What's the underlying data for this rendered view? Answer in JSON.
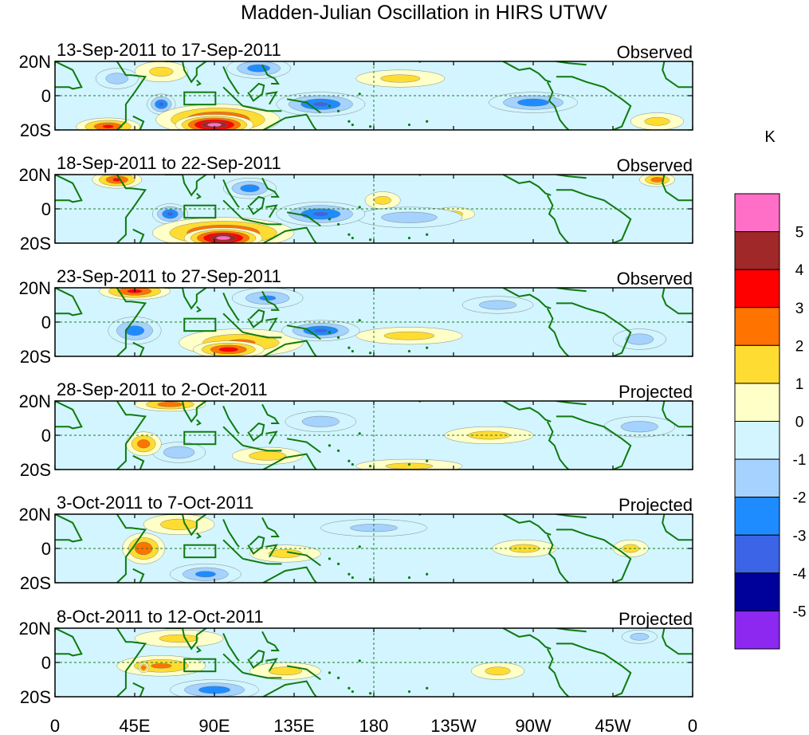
{
  "chart_data": {
    "type": "heatmap",
    "title": "Madden-Julian Oscillation in HIRS UTWV",
    "colorbar": {
      "unit": "K",
      "ticks": [
        "5",
        "4",
        "3",
        "2",
        "1",
        "0",
        "-1",
        "-2",
        "-3",
        "-4",
        "-5"
      ],
      "colors": [
        "#ff6ec7",
        "#a02828",
        "#ff0000",
        "#ff7300",
        "#ffdc32",
        "#ffffc8",
        "#d2f5ff",
        "#a5d2ff",
        "#1e8cff",
        "#3c64e6",
        "#00009b",
        "#8c28f0"
      ]
    },
    "x_ticks": [
      "0",
      "45E",
      "90E",
      "135E",
      "180",
      "135W",
      "90W",
      "45W",
      "0"
    ],
    "y_ticks": [
      "20N",
      "0",
      "20S"
    ],
    "xlim_deg_east": [
      0,
      360
    ],
    "ylim_deg": [
      -20,
      20
    ],
    "panels": [
      {
        "period": "13-Sep-2011 to 17-Sep-2011",
        "status": "Observed",
        "blobs": [
          {
            "lon": 90,
            "lat": -17,
            "rx": 22,
            "ry": 6,
            "v": 5.5
          },
          {
            "lon": 92,
            "lat": -14,
            "rx": 35,
            "ry": 9,
            "v": 3.5
          },
          {
            "lon": 30,
            "lat": -18,
            "rx": 18,
            "ry": 5,
            "v": 3
          },
          {
            "lon": 60,
            "lat": -5,
            "rx": 8,
            "ry": 6,
            "v": -3
          },
          {
            "lon": 150,
            "lat": -5,
            "rx": 25,
            "ry": 7,
            "v": -3
          },
          {
            "lon": 115,
            "lat": 16,
            "rx": 18,
            "ry": 6,
            "v": -2.5
          },
          {
            "lon": 270,
            "lat": -4,
            "rx": 25,
            "ry": 6,
            "v": -2.5
          },
          {
            "lon": 35,
            "lat": 10,
            "rx": 12,
            "ry": 6,
            "v": -1.5
          },
          {
            "lon": 195,
            "lat": 10,
            "rx": 25,
            "ry": 5,
            "v": 1.2
          },
          {
            "lon": 340,
            "lat": -15,
            "rx": 15,
            "ry": 5,
            "v": 1.3
          },
          {
            "lon": 60,
            "lat": 14,
            "rx": 15,
            "ry": 6,
            "v": 1.2
          }
        ]
      },
      {
        "period": "18-Sep-2011 to 22-Sep-2011",
        "status": "Observed",
        "blobs": [
          {
            "lon": 95,
            "lat": -17,
            "rx": 22,
            "ry": 6,
            "v": 5.5
          },
          {
            "lon": 95,
            "lat": -14,
            "rx": 40,
            "ry": 9,
            "v": 3.5
          },
          {
            "lon": 35,
            "lat": 17,
            "rx": 14,
            "ry": 5,
            "v": 3
          },
          {
            "lon": 340,
            "lat": 17,
            "rx": 10,
            "ry": 4,
            "v": 2.5
          },
          {
            "lon": 65,
            "lat": -3,
            "rx": 10,
            "ry": 6,
            "v": -3
          },
          {
            "lon": 150,
            "lat": -3,
            "rx": 25,
            "ry": 7,
            "v": -3
          },
          {
            "lon": 110,
            "lat": 12,
            "rx": 15,
            "ry": 6,
            "v": -2.5
          },
          {
            "lon": 200,
            "lat": -5,
            "rx": 30,
            "ry": 6,
            "v": -1.5
          },
          {
            "lon": 185,
            "lat": 5,
            "rx": 10,
            "ry": 5,
            "v": 1.3
          },
          {
            "lon": 225,
            "lat": -3,
            "rx": 12,
            "ry": 4,
            "v": 1.2
          }
        ]
      },
      {
        "period": "23-Sep-2011 to 27-Sep-2011",
        "status": "Observed",
        "blobs": [
          {
            "lon": 98,
            "lat": -16,
            "rx": 20,
            "ry": 5,
            "v": 3.5
          },
          {
            "lon": 105,
            "lat": -12,
            "rx": 35,
            "ry": 8,
            "v": 2
          },
          {
            "lon": 45,
            "lat": 18,
            "rx": 20,
            "ry": 5,
            "v": 3.2
          },
          {
            "lon": 45,
            "lat": -5,
            "rx": 15,
            "ry": 8,
            "v": -2.5
          },
          {
            "lon": 150,
            "lat": -5,
            "rx": 22,
            "ry": 6,
            "v": -3
          },
          {
            "lon": 120,
            "lat": 14,
            "rx": 20,
            "ry": 6,
            "v": -2
          },
          {
            "lon": 200,
            "lat": -8,
            "rx": 30,
            "ry": 5,
            "v": 1.3
          },
          {
            "lon": 250,
            "lat": 10,
            "rx": 20,
            "ry": 5,
            "v": -1.5
          },
          {
            "lon": 330,
            "lat": -10,
            "rx": 15,
            "ry": 6,
            "v": -1.5
          }
        ]
      },
      {
        "period": "28-Sep-2011 to 2-Oct-2011",
        "status": "Projected",
        "blobs": [
          {
            "lon": 50,
            "lat": -5,
            "rx": 10,
            "ry": 7,
            "v": 2.5
          },
          {
            "lon": 65,
            "lat": 18,
            "rx": 20,
            "ry": 4,
            "v": 2.5
          },
          {
            "lon": 70,
            "lat": -10,
            "rx": 15,
            "ry": 6,
            "v": -1.8
          },
          {
            "lon": 120,
            "lat": -12,
            "rx": 20,
            "ry": 5,
            "v": 1.5
          },
          {
            "lon": 150,
            "lat": 8,
            "rx": 20,
            "ry": 6,
            "v": -1.5
          },
          {
            "lon": 200,
            "lat": -18,
            "rx": 30,
            "ry": 4,
            "v": 1.2
          },
          {
            "lon": 245,
            "lat": 0,
            "rx": 25,
            "ry": 5,
            "v": 1.3
          },
          {
            "lon": 330,
            "lat": 5,
            "rx": 20,
            "ry": 6,
            "v": -1.5
          }
        ]
      },
      {
        "period": "3-Oct-2011 to 7-Oct-2011",
        "status": "Projected",
        "blobs": [
          {
            "lon": 50,
            "lat": 0,
            "rx": 12,
            "ry": 9,
            "v": 2.8
          },
          {
            "lon": 70,
            "lat": 14,
            "rx": 20,
            "ry": 6,
            "v": 1.5
          },
          {
            "lon": 85,
            "lat": -15,
            "rx": 20,
            "ry": 6,
            "v": -2.2
          },
          {
            "lon": 130,
            "lat": -3,
            "rx": 20,
            "ry": 5,
            "v": 1.3
          },
          {
            "lon": 265,
            "lat": 0,
            "rx": 18,
            "ry": 5,
            "v": 1.3
          },
          {
            "lon": 325,
            "lat": 0,
            "rx": 10,
            "ry": 5,
            "v": 1.3
          },
          {
            "lon": 180,
            "lat": 12,
            "rx": 30,
            "ry": 5,
            "v": -1.2
          }
        ]
      },
      {
        "period": "8-Oct-2011 to 12-Oct-2011",
        "status": "Projected",
        "blobs": [
          {
            "lon": 60,
            "lat": -2,
            "rx": 25,
            "ry": 6,
            "v": 2
          },
          {
            "lon": 50,
            "lat": -3,
            "rx": 3,
            "ry": 3,
            "v": 2.8
          },
          {
            "lon": 90,
            "lat": -16,
            "rx": 25,
            "ry": 6,
            "v": -2.5
          },
          {
            "lon": 130,
            "lat": -5,
            "rx": 20,
            "ry": 5,
            "v": 1.3
          },
          {
            "lon": 250,
            "lat": -5,
            "rx": 15,
            "ry": 5,
            "v": 1.3
          },
          {
            "lon": 70,
            "lat": 14,
            "rx": 25,
            "ry": 5,
            "v": 1.2
          },
          {
            "lon": 330,
            "lat": 15,
            "rx": 10,
            "ry": 4,
            "v": -1.5
          }
        ]
      }
    ]
  }
}
